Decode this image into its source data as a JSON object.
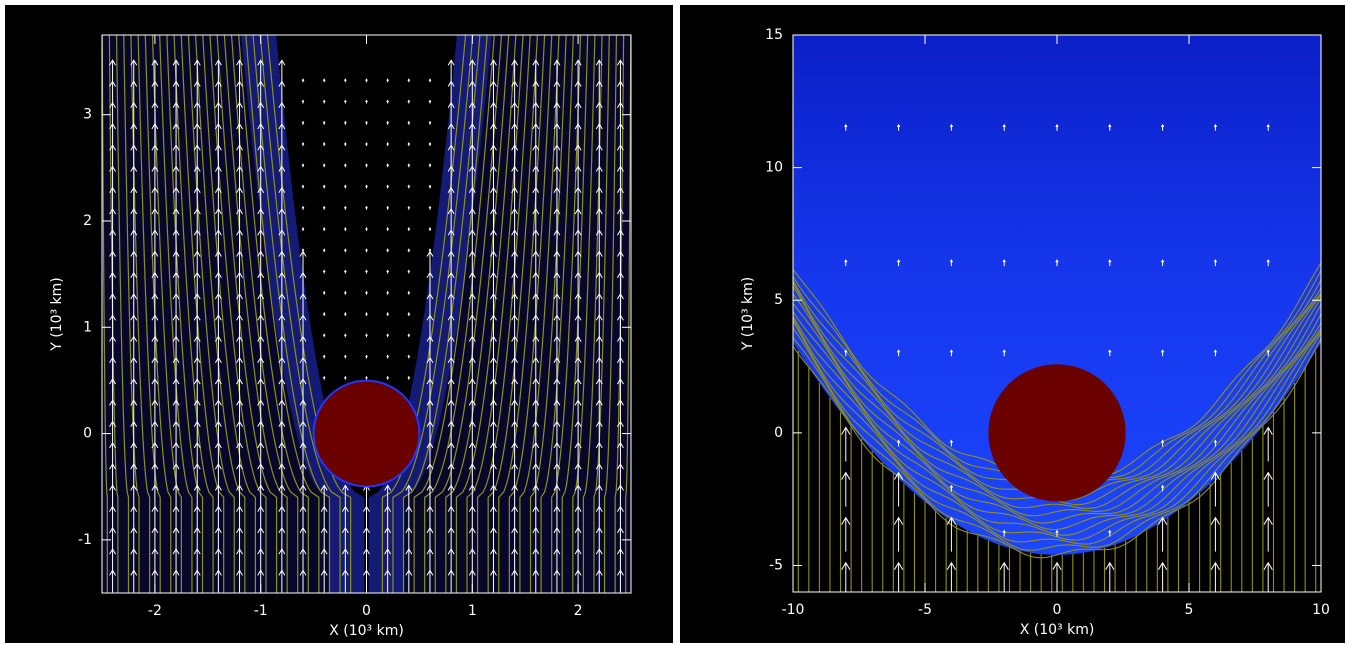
{
  "chart_data": [
    {
      "type": "field",
      "xlabel": "X (10³ km)",
      "ylabel": "Y (10³ km)",
      "xlim": [
        -2.5,
        2.5
      ],
      "ylim": [
        -1.5,
        3.75
      ],
      "xticks": [
        -2,
        -1,
        0,
        1,
        2
      ],
      "yticks": [
        -1,
        0,
        1,
        2,
        3
      ],
      "obstacle_radius": 0.5
    },
    {
      "type": "field",
      "xlabel": "X (10³ km)",
      "ylabel": "Y (10³ km)",
      "xlim": [
        -10,
        10
      ],
      "ylim": [
        -6,
        15
      ],
      "xticks": [
        -10,
        -5,
        0,
        5,
        10
      ],
      "yticks": [
        -5,
        0,
        5,
        10,
        15
      ],
      "obstacle_radius": 2.6
    }
  ]
}
